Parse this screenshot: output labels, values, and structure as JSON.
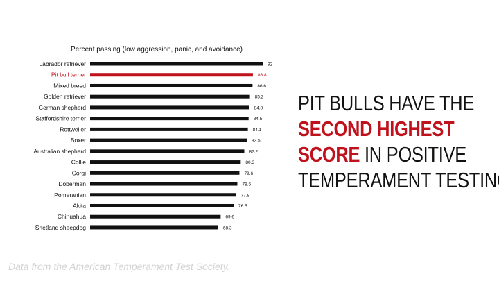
{
  "chart_data": {
    "type": "bar",
    "orientation": "horizontal",
    "title": "Percent passing (low aggression, panic, and avoidance)",
    "categories": [
      "Labrador retriever",
      "Pit bull terrier",
      "Mixed breed",
      "Golden retriever",
      "German shepherd",
      "Staffordshire terrier",
      "Rottweiler",
      "Boxer",
      "Australian shepherd",
      "Collie",
      "Corgi",
      "Doberman",
      "Pomeranian",
      "Akita",
      "Chihuahua",
      "Shetland sheepdog"
    ],
    "values": [
      92,
      86.8,
      86.6,
      85.2,
      84.8,
      84.5,
      84.1,
      83.5,
      82.2,
      80.3,
      79.6,
      78.5,
      77.8,
      76.5,
      69.6,
      68.3
    ],
    "value_labels": [
      "92",
      "86.8",
      "86.6",
      "85.2",
      "84.8",
      "84.5",
      "84.1",
      "83.5",
      "82.2",
      "80.3",
      "79.6",
      "78.5",
      "77.8",
      "76.5",
      "69.6",
      "68.3"
    ],
    "highlight_category": "Pit bull terrier",
    "bar_color": "#111111",
    "highlight_color": "#c0121c",
    "xlim": [
      0,
      92
    ],
    "grid": false,
    "legend": "none"
  },
  "headline": {
    "line1": "PIT BULLS HAVE THE",
    "accent1": "SECOND HIGHEST",
    "accent2": "SCORE",
    "line3_rest": " IN POSITIVE",
    "line4": "TEMPERAMENT TESTING."
  },
  "footer": {
    "source_note": "Data from the American Temperament Test Society."
  }
}
